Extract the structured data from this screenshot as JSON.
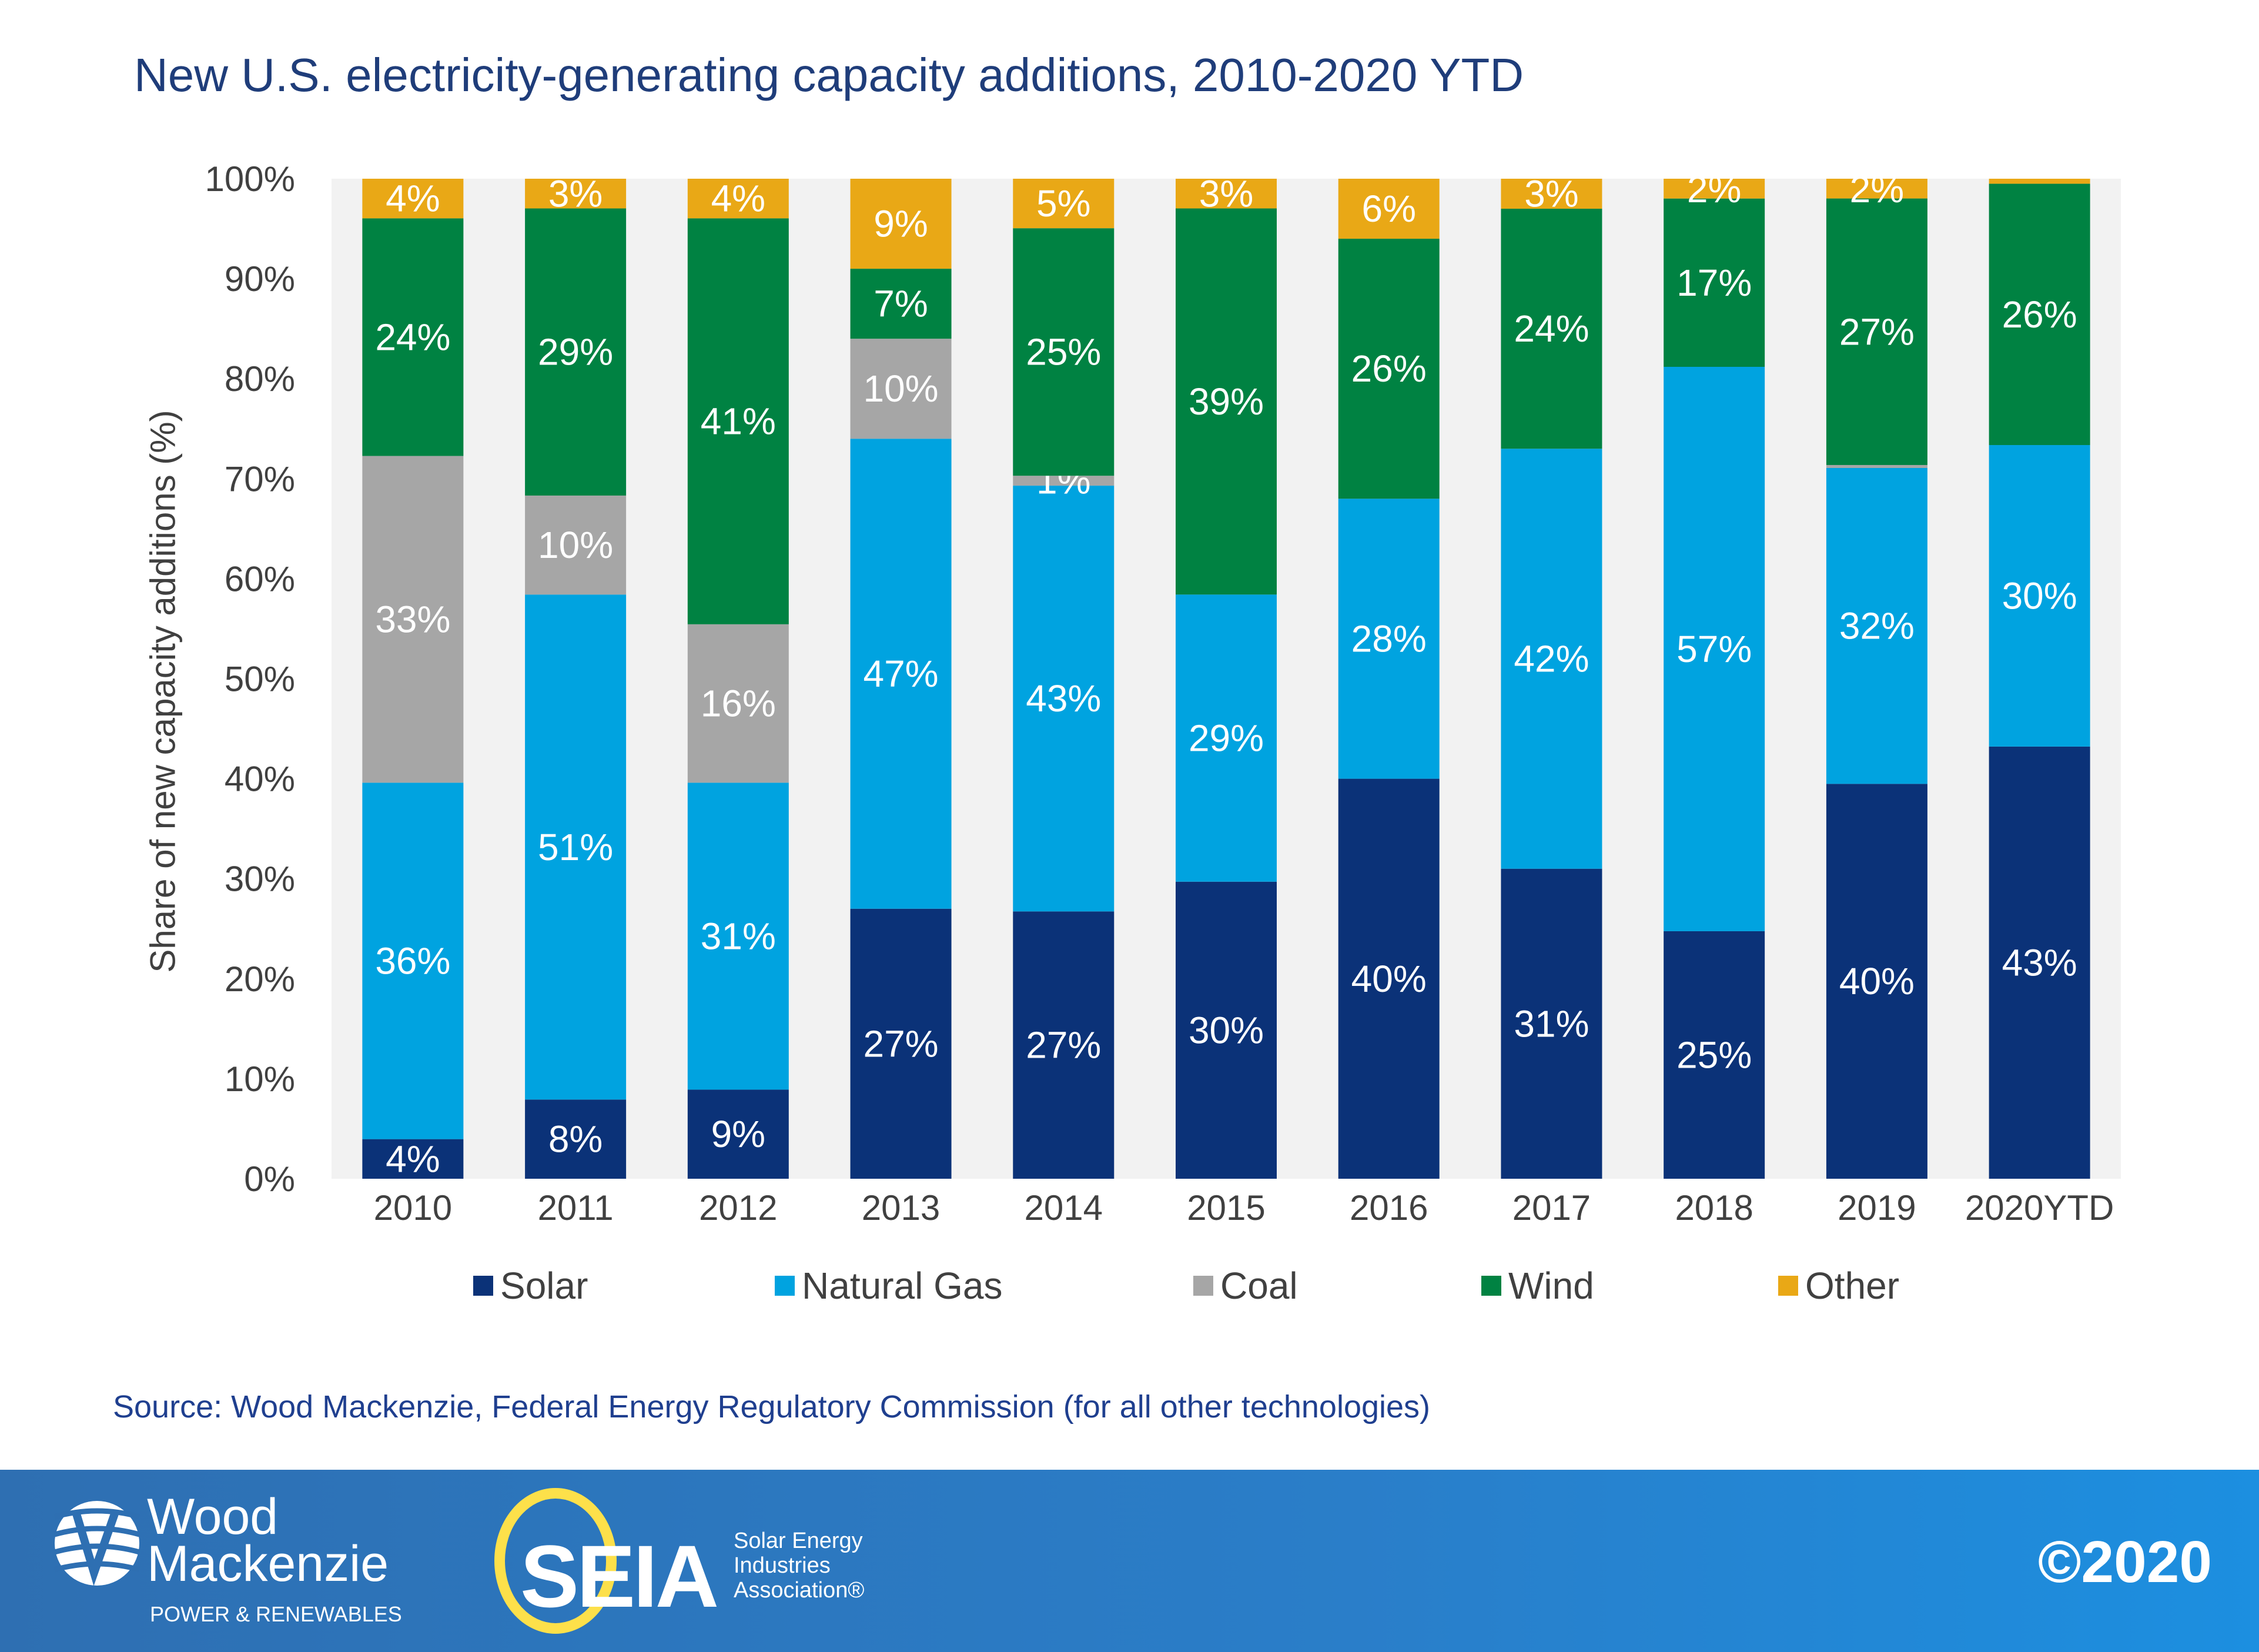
{
  "chart_data": {
    "type": "bar",
    "stacked": true,
    "title": "New U.S. electricity-generating capacity additions, 2010-2020 YTD",
    "ylabel": "Share of new capacity additions (%)",
    "xlabel": "",
    "ylim": [
      0,
      100
    ],
    "yticks": [
      "0%",
      "10%",
      "20%",
      "30%",
      "40%",
      "50%",
      "60%",
      "70%",
      "80%",
      "90%",
      "100%"
    ],
    "categories": [
      "2010",
      "2011",
      "2012",
      "2013",
      "2014",
      "2015",
      "2016",
      "2017",
      "2018",
      "2019",
      "2020YTD"
    ],
    "series": [
      {
        "name": "Solar",
        "color": "#0b3278",
        "values": [
          4,
          8,
          9,
          27,
          27,
          30,
          40,
          31,
          25,
          40,
          43
        ]
      },
      {
        "name": "Natural Gas",
        "color": "#00a3e0",
        "values": [
          36,
          51,
          31,
          47,
          43,
          29,
          28,
          42,
          57,
          32,
          30
        ]
      },
      {
        "name": "Coal",
        "color": "#a6a6a6",
        "values": [
          33,
          10,
          16,
          10,
          1,
          0,
          0,
          0,
          0,
          0.3,
          0
        ]
      },
      {
        "name": "Wind",
        "color": "#008242",
        "values": [
          24,
          29,
          41,
          7,
          25,
          39,
          26,
          24,
          17,
          27,
          26
        ]
      },
      {
        "name": "Other",
        "color": "#e9a816",
        "values": [
          4,
          3,
          4,
          9,
          5,
          3,
          6,
          3,
          2,
          2,
          0.5
        ]
      }
    ],
    "legend_position": "bottom",
    "grid": false,
    "plot_background": "#f2f2f2"
  },
  "source": "Source: Wood Mackenzie, Federal Energy Regulatory Commission (for all other technologies)",
  "footer": {
    "logo1": {
      "line1": "Wood",
      "line2": "Mackenzie",
      "line3": "POWER & RENEWABLES"
    },
    "logo2": {
      "mark": "SEIA",
      "line1": "Solar Energy",
      "line2": "Industries",
      "line3": "Association®"
    },
    "copyright": "©2020",
    "background": "#2a7ec9"
  }
}
